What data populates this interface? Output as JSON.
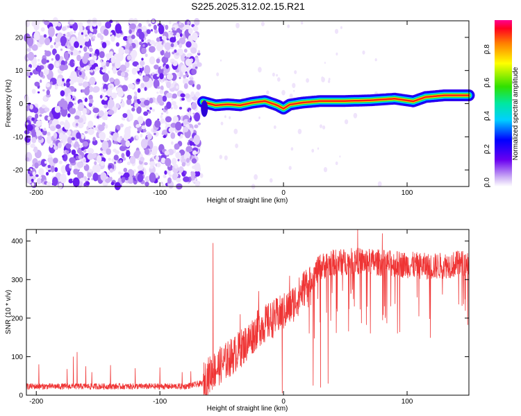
{
  "title": "S225.2025.312.02.15.R21",
  "chart_data": [
    {
      "type": "heatmap",
      "name": "spectrogram",
      "xlabel": "Height of straight line (km)",
      "ylabel": "Frequency (Hz)",
      "xlim": [
        -208,
        150
      ],
      "ylim": [
        -25,
        25
      ],
      "xticks": [
        -200,
        -100,
        0,
        100
      ],
      "yticks": [
        -20,
        -10,
        0,
        10,
        20
      ],
      "noise_region_x": [
        -208,
        -68
      ],
      "ridge": [
        {
          "x": -65,
          "y": 0.5
        },
        {
          "x": -55,
          "y": -0.5
        },
        {
          "x": -45,
          "y": -0.2
        },
        {
          "x": -35,
          "y": -0.5
        },
        {
          "x": -25,
          "y": 0.3
        },
        {
          "x": -15,
          "y": 0.8
        },
        {
          "x": -5,
          "y": -0.5
        },
        {
          "x": 0,
          "y": -1.5
        },
        {
          "x": 5,
          "y": -0.3
        },
        {
          "x": 15,
          "y": 0.3
        },
        {
          "x": 30,
          "y": 0.8
        },
        {
          "x": 50,
          "y": 0.8
        },
        {
          "x": 70,
          "y": 1.0
        },
        {
          "x": 90,
          "y": 1.5
        },
        {
          "x": 105,
          "y": 0.7
        },
        {
          "x": 115,
          "y": 2.0
        },
        {
          "x": 130,
          "y": 2.5
        },
        {
          "x": 150,
          "y": 2.5
        }
      ],
      "colorbar": {
        "label": "Normalized spectral amplitude",
        "range": [
          0,
          1
        ],
        "ticks": [
          "0.0",
          "0.2",
          "0.4",
          "0.6",
          "0.8"
        ],
        "tick_values": [
          0,
          0.2,
          0.4,
          0.6,
          0.8
        ]
      }
    },
    {
      "type": "line",
      "name": "snr",
      "xlabel": "Height of straight line (km)",
      "ylabel": "SNR (10 * v/v)",
      "xlim": [
        -208,
        150
      ],
      "ylim": [
        0,
        430
      ],
      "xticks": [
        -200,
        -100,
        0,
        100
      ],
      "yticks": [
        0,
        100,
        200,
        300,
        400
      ],
      "color": "#ef3434",
      "baseline": [
        {
          "x": -208,
          "y": 22
        },
        {
          "x": -80,
          "y": 22
        },
        {
          "x": -65,
          "y": 30
        },
        {
          "x": -58,
          "y": 55
        },
        {
          "x": -50,
          "y": 75
        },
        {
          "x": -40,
          "y": 100
        },
        {
          "x": -30,
          "y": 130
        },
        {
          "x": -20,
          "y": 170
        },
        {
          "x": -10,
          "y": 190
        },
        {
          "x": 0,
          "y": 210
        },
        {
          "x": 10,
          "y": 240
        },
        {
          "x": 20,
          "y": 290
        },
        {
          "x": 30,
          "y": 330
        },
        {
          "x": 40,
          "y": 340
        },
        {
          "x": 60,
          "y": 345
        },
        {
          "x": 80,
          "y": 340
        },
        {
          "x": 100,
          "y": 335
        },
        {
          "x": 120,
          "y": 330
        },
        {
          "x": 150,
          "y": 340
        }
      ],
      "spikes": [
        {
          "x": -198,
          "y": 80
        },
        {
          "x": -175,
          "y": 68
        },
        {
          "x": -170,
          "y": 100
        },
        {
          "x": -167,
          "y": 112
        },
        {
          "x": -160,
          "y": 75
        },
        {
          "x": -155,
          "y": 60
        },
        {
          "x": -140,
          "y": 78
        },
        {
          "x": -120,
          "y": 70
        },
        {
          "x": -100,
          "y": 72
        },
        {
          "x": -82,
          "y": 60
        },
        {
          "x": -75,
          "y": 62
        },
        {
          "x": -57,
          "y": 395
        },
        {
          "x": -35,
          "y": 210
        },
        {
          "x": -20,
          "y": 270
        },
        {
          "x": 5,
          "y": 310
        },
        {
          "x": 30,
          "y": 405
        },
        {
          "x": 60,
          "y": 430
        },
        {
          "x": 80,
          "y": 420
        }
      ],
      "dips": [
        {
          "x": -1,
          "y": 5
        },
        {
          "x": 24,
          "y": 25
        },
        {
          "x": 30,
          "y": 20
        },
        {
          "x": 36,
          "y": 30
        }
      ]
    }
  ]
}
